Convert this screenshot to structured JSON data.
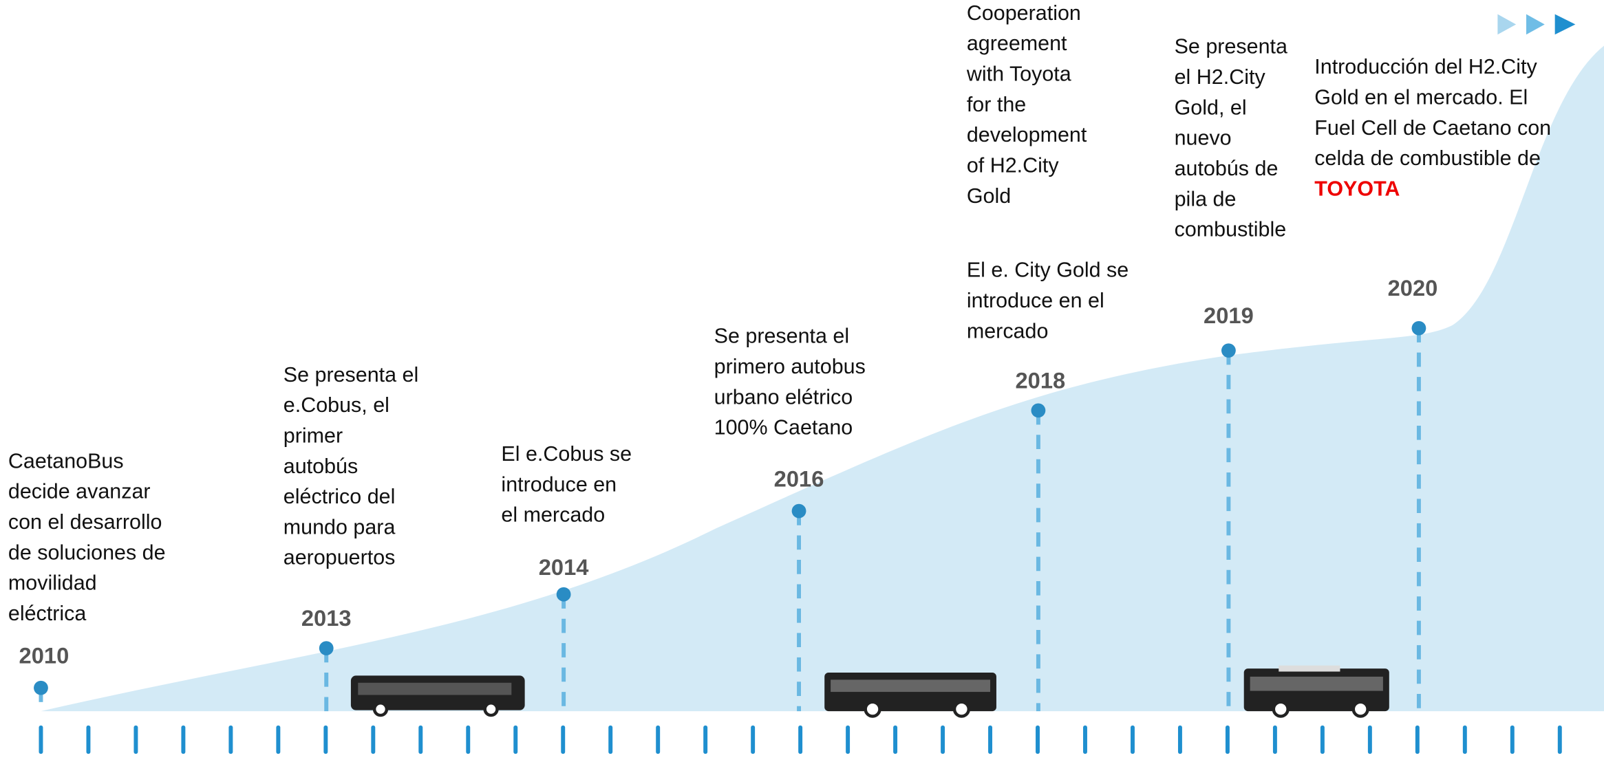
{
  "timeline": {
    "events": [
      {
        "year": "2010",
        "text": [
          "CaetanoBus",
          "decide avanzar",
          "con el desarrollo",
          "de soluciones de",
          "movilidad",
          "eléctrica"
        ]
      },
      {
        "year": "2013",
        "text": [
          "Se presenta el",
          "e.Cobus, el",
          "primer",
          "autobús",
          "eléctrico del",
          "mundo para",
          "aeropuertos"
        ]
      },
      {
        "year": "2014",
        "text": [
          "El e.Cobus se",
          "introduce en",
          "el mercado"
        ]
      },
      {
        "year": "2016",
        "text": [
          "Se presenta el",
          "primero autobus",
          "urbano elétrico",
          "100% Caetano"
        ]
      },
      {
        "year": "2018",
        "text": [
          "El e. City Gold se",
          "introduce en el",
          "mercado"
        ],
        "note": [
          "Cooperation",
          "agreement",
          "with Toyota",
          "for the",
          "development",
          "of H2.City",
          "Gold"
        ]
      },
      {
        "year": "2019",
        "text": [
          "Se presenta",
          "el H2.City",
          "Gold, el",
          "nuevo",
          "autobús de",
          "pila de",
          "combustible"
        ]
      },
      {
        "year": "2020",
        "text": [
          "Introducción del H2.City",
          "Gold en el mercado. El",
          "Fuel Cell de Caetano con",
          "celda de combustible de"
        ],
        "highlight": "TOYOTA"
      }
    ]
  }
}
